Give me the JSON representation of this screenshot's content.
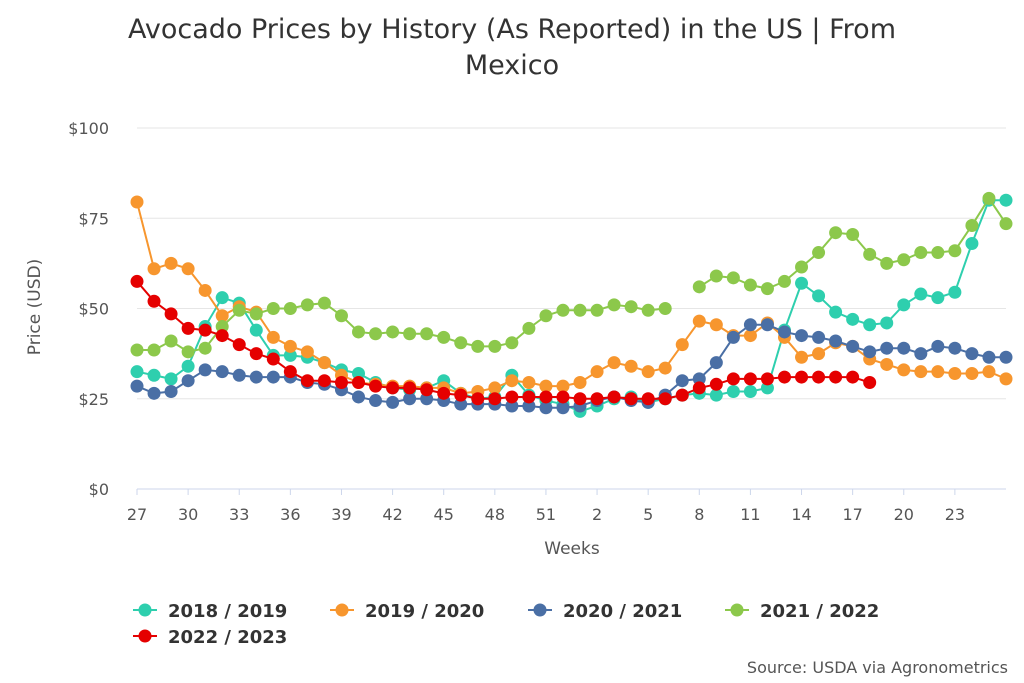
{
  "chart_data": {
    "type": "line",
    "title": [
      "Avocado Prices by History (As Reported) in the US | From",
      "Mexico"
    ],
    "xlabel": "Weeks",
    "ylabel": "Price (USD)",
    "ylim": [
      0,
      100
    ],
    "y_ticks": [
      "$0",
      "$25",
      "$50",
      "$75",
      "$100"
    ],
    "y_tick_values": [
      0,
      25,
      50,
      75,
      100
    ],
    "x_ticks": [
      "27",
      "30",
      "33",
      "36",
      "39",
      "42",
      "45",
      "48",
      "51",
      "2",
      "5",
      "8",
      "11",
      "14",
      "17",
      "20",
      "23"
    ],
    "x_tick_index": [
      0,
      3,
      6,
      9,
      12,
      15,
      18,
      21,
      24,
      27,
      30,
      33,
      36,
      39,
      42,
      45,
      48
    ],
    "x": [
      27,
      28,
      29,
      30,
      31,
      32,
      33,
      34,
      35,
      36,
      37,
      38,
      39,
      40,
      41,
      42,
      43,
      44,
      45,
      46,
      47,
      48,
      49,
      50,
      51,
      52,
      1,
      2,
      3,
      4,
      5,
      6,
      7,
      8,
      9,
      10,
      11,
      12,
      13,
      14,
      15,
      16,
      17,
      18,
      19,
      20,
      21,
      22,
      23,
      24,
      25,
      26
    ],
    "grid": "horizontal",
    "legend_position": "bottom",
    "source": "Source: USDA via Agronometrics",
    "series": [
      {
        "name": "2018 / 2019",
        "color": "#2ecfae",
        "values": [
          32.5,
          31.5,
          30.5,
          34,
          45,
          53,
          51.5,
          44,
          37,
          37,
          36.5,
          35,
          33,
          32,
          29.5,
          28,
          27.5,
          28,
          30,
          26.5,
          25,
          25.5,
          31.5,
          26,
          24.5,
          23.5,
          21.5,
          23,
          25,
          25.5,
          24,
          25,
          26,
          26.5,
          26,
          27,
          27,
          28,
          44,
          57,
          53.5,
          49,
          47,
          45.5,
          46,
          51,
          54,
          53,
          54.5,
          68,
          80,
          80
        ]
      },
      {
        "name": "2019 / 2020",
        "color": "#f7962e",
        "values": [
          79.5,
          61,
          62.5,
          61,
          55,
          48,
          50.5,
          49,
          42,
          39.5,
          38,
          35,
          31.5,
          29.5,
          29,
          28.5,
          28.5,
          28,
          28,
          26.5,
          27,
          28,
          30,
          29.5,
          28.5,
          28.5,
          29.5,
          32.5,
          35,
          34,
          32.5,
          33.5,
          40,
          46.5,
          45.5,
          42.5,
          42.5,
          46,
          42,
          36.5,
          37.5,
          40.5,
          39.5,
          36,
          34.5,
          33,
          32.5,
          32.5,
          32,
          32,
          32.5,
          30.5
        ]
      },
      {
        "name": "2020 / 2021",
        "color": "#4a6fa5",
        "values": [
          28.5,
          26.5,
          27,
          30,
          33,
          32.5,
          31.5,
          31,
          31,
          31,
          29.5,
          29,
          27.5,
          25.5,
          24.5,
          24,
          25,
          25,
          24.5,
          23.5,
          23.5,
          23.5,
          23,
          23,
          22.5,
          22.5,
          23,
          24.5,
          25.5,
          24.5,
          24,
          26,
          30,
          30.5,
          35,
          42,
          45.5,
          45.5,
          43.5,
          42.5,
          42,
          41,
          39.5,
          38,
          39,
          39,
          37.5,
          39.5,
          39,
          37.5,
          36.5,
          36.5
        ]
      },
      {
        "name": "2021 / 2022",
        "color": "#8cc84b",
        "values": [
          38.5,
          38.5,
          41,
          38,
          39,
          45,
          49.5,
          48.5,
          50,
          50,
          51,
          51.5,
          48,
          43.5,
          43,
          43.5,
          43,
          43,
          42,
          40.5,
          39.5,
          39.5,
          40.5,
          44.5,
          48,
          49.5,
          49.5,
          49.5,
          51,
          50.5,
          49.5,
          50,
          null,
          56,
          59,
          58.5,
          56.5,
          55.5,
          57.5,
          61.5,
          65.5,
          71,
          70.5,
          65,
          62.5,
          63.5,
          65.5,
          65.5,
          66,
          73,
          80.5,
          73.5
        ]
      },
      {
        "name": "2022 / 2023",
        "color": "#e50000",
        "values": [
          57.5,
          52,
          48.5,
          44.5,
          44,
          42.5,
          40,
          37.5,
          36,
          32.5,
          30,
          30,
          29.5,
          29.5,
          28.5,
          28,
          28,
          27.5,
          26.5,
          26,
          25,
          25,
          25.5,
          25.5,
          25.5,
          25.5,
          25,
          25,
          25.5,
          25,
          25,
          25,
          26,
          28,
          29,
          30.5,
          30.5,
          30.5,
          31,
          31,
          31,
          31,
          31,
          29.5,
          null,
          null,
          null,
          null,
          null,
          null,
          null,
          null
        ]
      }
    ]
  }
}
